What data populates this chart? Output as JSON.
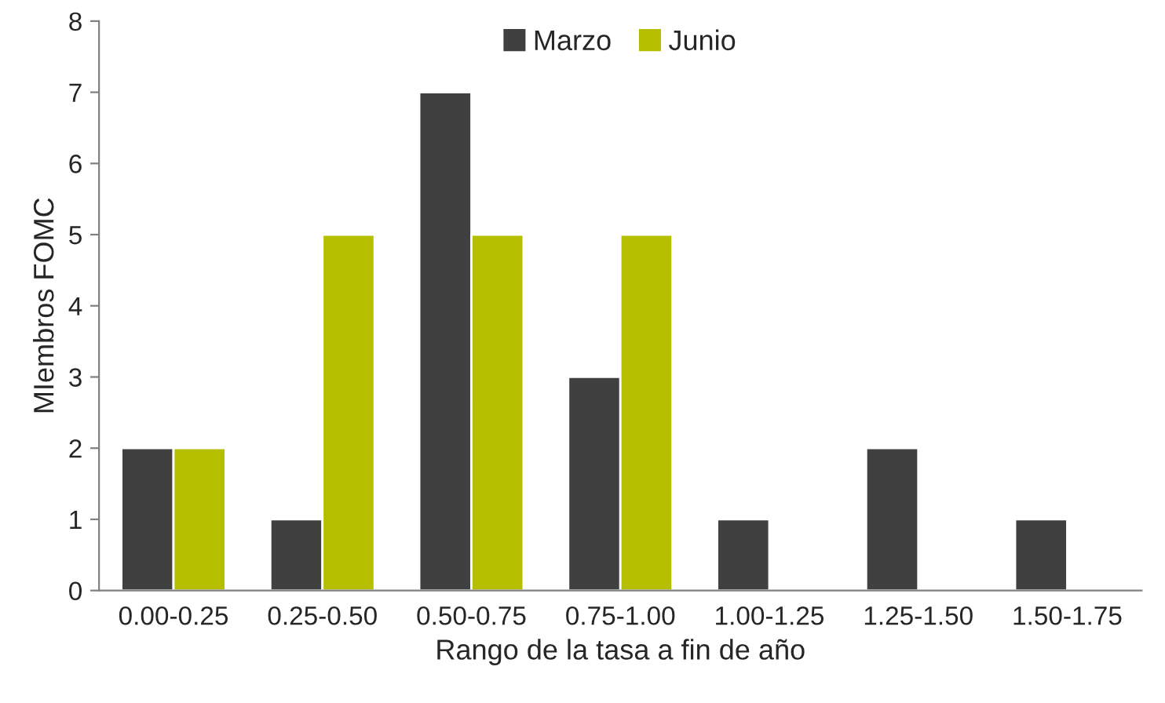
{
  "chart_data": {
    "type": "bar",
    "xlabel": "Rango de la tasa a fin de año",
    "ylabel": "MIembros FOMC",
    "categories": [
      "0.00-0.25",
      "0.25-0.50",
      "0.50-0.75",
      "0.75-1.00",
      "1.00-1.25",
      "1.25-1.50",
      "1.50-1.75"
    ],
    "series": [
      {
        "name": "Marzo",
        "color": "#404040",
        "values": [
          2,
          1,
          7,
          3,
          1,
          2,
          1
        ]
      },
      {
        "name": "Junio",
        "color": "#b5bf00",
        "values": [
          2,
          5,
          5,
          5,
          null,
          null,
          null
        ]
      }
    ],
    "ylim": [
      0,
      8
    ],
    "yticks": [
      0,
      1,
      2,
      3,
      4,
      5,
      6,
      7,
      8
    ],
    "grid": false,
    "legend": "top"
  }
}
